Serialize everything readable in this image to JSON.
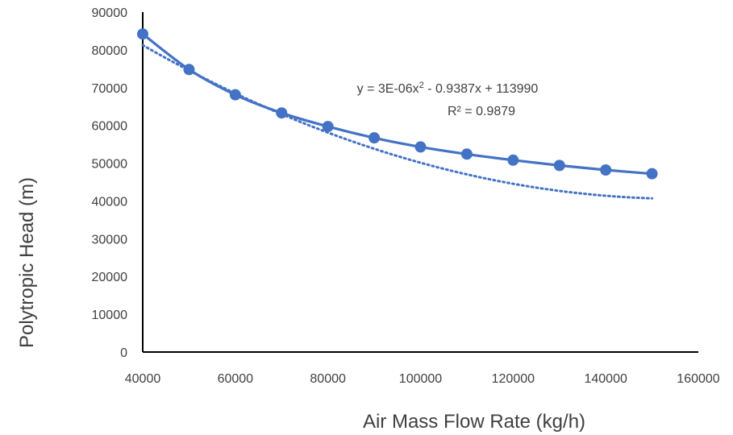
{
  "chart_data": {
    "type": "scatter",
    "xlabel": "Air Mass Flow Rate (kg/h)",
    "ylabel": "Polytropic Head (m)",
    "xlim": [
      40000,
      160000
    ],
    "ylim": [
      0,
      90000
    ],
    "x_ticks": [
      40000,
      60000,
      80000,
      100000,
      120000,
      140000,
      160000
    ],
    "y_ticks": [
      0,
      10000,
      20000,
      30000,
      40000,
      50000,
      60000,
      70000,
      80000,
      90000
    ],
    "grid": false,
    "legend": "none",
    "series": [
      {
        "style": "smooth line with markers",
        "color": "#4472C4",
        "x": [
          40000,
          50000,
          60000,
          70000,
          80000,
          90000,
          100000,
          110000,
          120000,
          130000,
          140000,
          150000
        ],
        "y": [
          84200,
          74800,
          68100,
          63300,
          59700,
          56700,
          54300,
          52400,
          50800,
          49400,
          48200,
          47200
        ]
      }
    ],
    "trendline": {
      "type": "polynomial",
      "order": 2,
      "style": "dotted",
      "color": "#4472C4",
      "coefficients": [
        3e-06,
        -0.9387,
        113990
      ],
      "x_range": [
        40000,
        150000
      ]
    },
    "annotations": {
      "equation_prefix": "y = 3E-06x",
      "equation_exponent": "2",
      "equation_suffix": " - 0.9387x + 113990",
      "r_squared": "R² = 0.9879"
    }
  }
}
